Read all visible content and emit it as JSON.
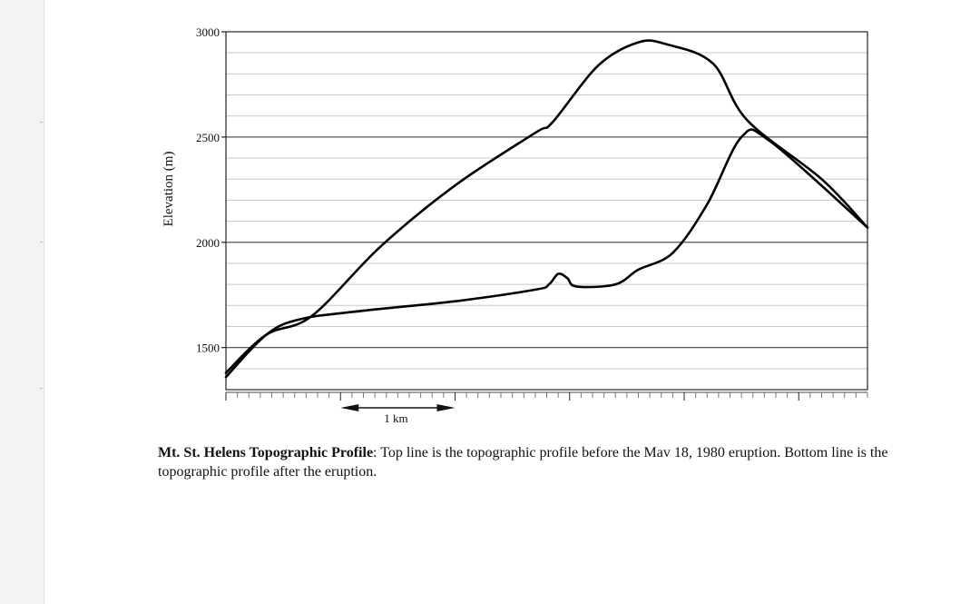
{
  "chart_data": {
    "type": "line",
    "title": "",
    "xlabel": "",
    "ylabel": "Elevation (m)",
    "ylim": [
      1300,
      3000
    ],
    "xlim": [
      0,
      5.6
    ],
    "yticks": [
      1500,
      2000,
      2500,
      3000
    ],
    "scale_bar_label": "1 km",
    "scale_bar_range_km": [
      1,
      2
    ],
    "grid": true,
    "legend": "none",
    "series": [
      {
        "x": [
          0,
          0.35,
          0.75,
          1.35,
          2.0,
          2.7,
          2.85,
          3.25,
          3.6,
          3.85,
          4.25,
          4.55,
          5.2,
          5.6
        ],
        "y": [
          1380,
          1560,
          1650,
          1980,
          2270,
          2520,
          2570,
          2840,
          2950,
          2940,
          2850,
          2580,
          2300,
          2070
        ]
      },
      {
        "x": [
          0,
          0.35,
          0.65,
          1.2,
          2.0,
          2.7,
          2.82,
          2.9,
          2.98,
          3.06,
          3.4,
          3.6,
          3.9,
          4.2,
          4.5,
          4.75,
          5.6
        ],
        "y": [
          1360,
          1560,
          1635,
          1675,
          1720,
          1775,
          1800,
          1850,
          1830,
          1790,
          1800,
          1870,
          1950,
          2180,
          2500,
          2480,
          2070
        ]
      }
    ]
  },
  "caption": {
    "title": "Mt. St. Helens Topographic Profile",
    "text": ": Top line is the topographic profile before the Mav 18, 1980 eruption. Bottom line is the topographic profile after the eruption."
  }
}
